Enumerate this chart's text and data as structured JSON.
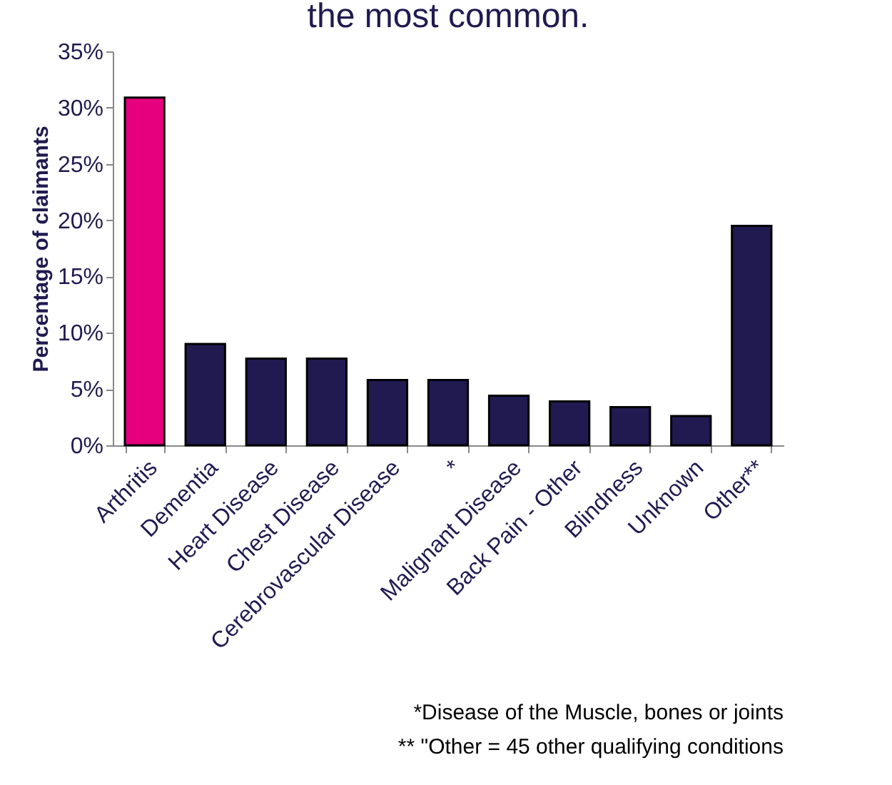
{
  "chart_data": {
    "type": "bar",
    "title": "the most common.",
    "ylabel": "Percentage of claimants",
    "categories": [
      "Arthritis",
      "Dementia",
      "Heart Disease",
      "Chest Disease",
      "Cerebrovascular Disease",
      "*",
      "Malignant Disease",
      "Back Pain - Other",
      "Blindness",
      "Unknown",
      "Other**"
    ],
    "values": [
      30.9,
      9.0,
      7.7,
      7.7,
      5.8,
      5.8,
      4.4,
      3.9,
      3.4,
      2.6,
      19.5
    ],
    "colors": [
      "#e6007e",
      "#201a50",
      "#201a50",
      "#201a50",
      "#201a50",
      "#201a50",
      "#201a50",
      "#201a50",
      "#201a50",
      "#201a50",
      "#201a50"
    ],
    "ylim": [
      0,
      35
    ],
    "yticks": [
      {
        "value": 0,
        "label": "0%"
      },
      {
        "value": 5,
        "label": "5%"
      },
      {
        "value": 10,
        "label": "10%"
      },
      {
        "value": 15,
        "label": "15%"
      },
      {
        "value": 20,
        "label": "20%"
      },
      {
        "value": 25,
        "label": "25%"
      },
      {
        "value": 30,
        "label": "30%"
      },
      {
        "value": 35,
        "label": "35%"
      }
    ],
    "grid": false,
    "annotations": [
      "*Disease of the Muscle, bones or joints",
      "** \"Other = 45 other qualifying conditions"
    ]
  }
}
